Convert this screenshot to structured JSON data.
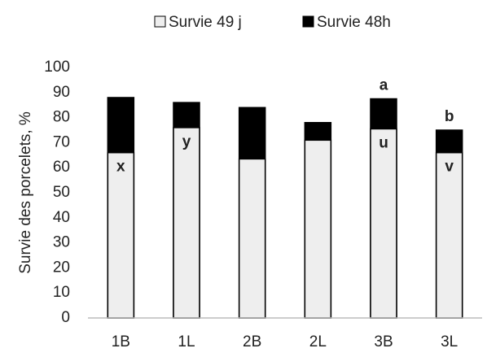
{
  "chart_data": {
    "type": "bar",
    "overlap": true,
    "y_label": "Survie des porcelets, %",
    "categories": [
      "1B",
      "1L",
      "2B",
      "2L",
      "3B",
      "3L"
    ],
    "series": [
      {
        "name": "Survie 49 j",
        "color": "#eeeeee",
        "values": [
          66,
          76,
          63.5,
          71,
          75.5,
          66
        ],
        "annotations": [
          "x",
          "y",
          null,
          null,
          "u",
          "v"
        ]
      },
      {
        "name": "Survie 48h",
        "color": "#000000",
        "values": [
          88,
          86,
          84,
          78,
          87.5,
          75
        ],
        "annotations": [
          null,
          null,
          null,
          null,
          "a",
          "b"
        ]
      }
    ],
    "ylim": [
      0,
      100
    ],
    "yticks": [
      0,
      10,
      20,
      30,
      40,
      50,
      60,
      70,
      80,
      90,
      100
    ],
    "grid": false
  }
}
